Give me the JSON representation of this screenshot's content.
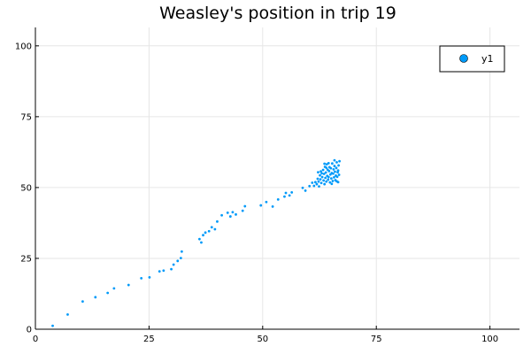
{
  "chart_data": {
    "type": "scatter",
    "title": "Weasley's position in trip 19",
    "xlabel": "",
    "ylabel": "",
    "xlim": [
      0,
      106.5
    ],
    "ylim": [
      0,
      106.5
    ],
    "xticks": [
      0,
      25,
      50,
      75,
      100
    ],
    "yticks": [
      0,
      25,
      50,
      75,
      100
    ],
    "grid": true,
    "legend_position": "top-right",
    "series": [
      {
        "name": "y1",
        "color": "#009af9",
        "points": [
          [
            3.8,
            1.2
          ],
          [
            7.1,
            5.2
          ],
          [
            10.4,
            9.8
          ],
          [
            13.2,
            11.3
          ],
          [
            15.9,
            12.8
          ],
          [
            17.3,
            14.4
          ],
          [
            20.5,
            15.6
          ],
          [
            23.3,
            18.0
          ],
          [
            25.1,
            18.3
          ],
          [
            27.3,
            20.4
          ],
          [
            28.2,
            20.7
          ],
          [
            29.9,
            21.2
          ],
          [
            30.4,
            22.8
          ],
          [
            31.3,
            24.1
          ],
          [
            32.2,
            27.4
          ],
          [
            32.0,
            25.1
          ],
          [
            36.1,
            31.8
          ],
          [
            36.5,
            30.6
          ],
          [
            36.9,
            33.2
          ],
          [
            37.4,
            34.1
          ],
          [
            38.2,
            34.6
          ],
          [
            38.8,
            36.0
          ],
          [
            39.5,
            35.3
          ],
          [
            40.0,
            38.0
          ],
          [
            41.0,
            40.2
          ],
          [
            42.3,
            41.1
          ],
          [
            42.9,
            39.8
          ],
          [
            43.4,
            41.3
          ],
          [
            44.1,
            40.5
          ],
          [
            45.6,
            41.8
          ],
          [
            46.1,
            43.4
          ],
          [
            49.6,
            43.7
          ],
          [
            50.8,
            44.9
          ],
          [
            52.2,
            43.3
          ],
          [
            53.4,
            45.8
          ],
          [
            54.8,
            46.8
          ],
          [
            55.1,
            48.1
          ],
          [
            55.9,
            47.2
          ],
          [
            56.4,
            48.3
          ],
          [
            58.8,
            49.9
          ],
          [
            59.4,
            48.9
          ],
          [
            60.3,
            50.5
          ],
          [
            60.9,
            51.7
          ],
          [
            61.3,
            50.6
          ],
          [
            61.6,
            51.9
          ],
          [
            61.9,
            51.2
          ],
          [
            62.1,
            53.1
          ],
          [
            62.3,
            52.1
          ],
          [
            62.4,
            50.4
          ],
          [
            62.6,
            54.3
          ],
          [
            62.8,
            55.7
          ],
          [
            62.9,
            51.6
          ],
          [
            63.1,
            53.7
          ],
          [
            63.3,
            56.2
          ],
          [
            63.4,
            52.5
          ],
          [
            63.5,
            54.8
          ],
          [
            63.6,
            51.2
          ],
          [
            63.7,
            57.3
          ],
          [
            63.8,
            53.4
          ],
          [
            63.9,
            55.3
          ],
          [
            64.0,
            52.1
          ],
          [
            64.1,
            58.2
          ],
          [
            64.2,
            54.1
          ],
          [
            64.3,
            56.3
          ],
          [
            64.4,
            52.8
          ],
          [
            64.5,
            53.7
          ],
          [
            64.6,
            55.8
          ],
          [
            64.7,
            57.2
          ],
          [
            64.8,
            51.8
          ],
          [
            64.9,
            54.6
          ],
          [
            65.0,
            56.8
          ],
          [
            65.1,
            53.2
          ],
          [
            65.2,
            55.1
          ],
          [
            65.3,
            58.5
          ],
          [
            65.4,
            52.3
          ],
          [
            65.5,
            54.9
          ],
          [
            65.6,
            56.4
          ],
          [
            65.7,
            53.6
          ],
          [
            65.8,
            57.6
          ],
          [
            65.9,
            55.6
          ],
          [
            66.0,
            52.6
          ],
          [
            66.1,
            54.2
          ],
          [
            66.2,
            56.9
          ],
          [
            66.3,
            58.9
          ],
          [
            66.4,
            53.8
          ],
          [
            66.5,
            55.4
          ],
          [
            66.6,
            51.9
          ],
          [
            66.7,
            57.8
          ],
          [
            66.8,
            54.5
          ],
          [
            66.9,
            59.3
          ],
          [
            63.0,
            55.0
          ],
          [
            64.5,
            58.6
          ],
          [
            65.2,
            51.3
          ],
          [
            62.7,
            52.9
          ],
          [
            66.3,
            52.2
          ],
          [
            64.0,
            57.0
          ],
          [
            65.8,
            59.6
          ],
          [
            63.6,
            58.4
          ],
          [
            66.6,
            56.0
          ],
          [
            62.2,
            55.4
          ]
        ]
      }
    ]
  }
}
